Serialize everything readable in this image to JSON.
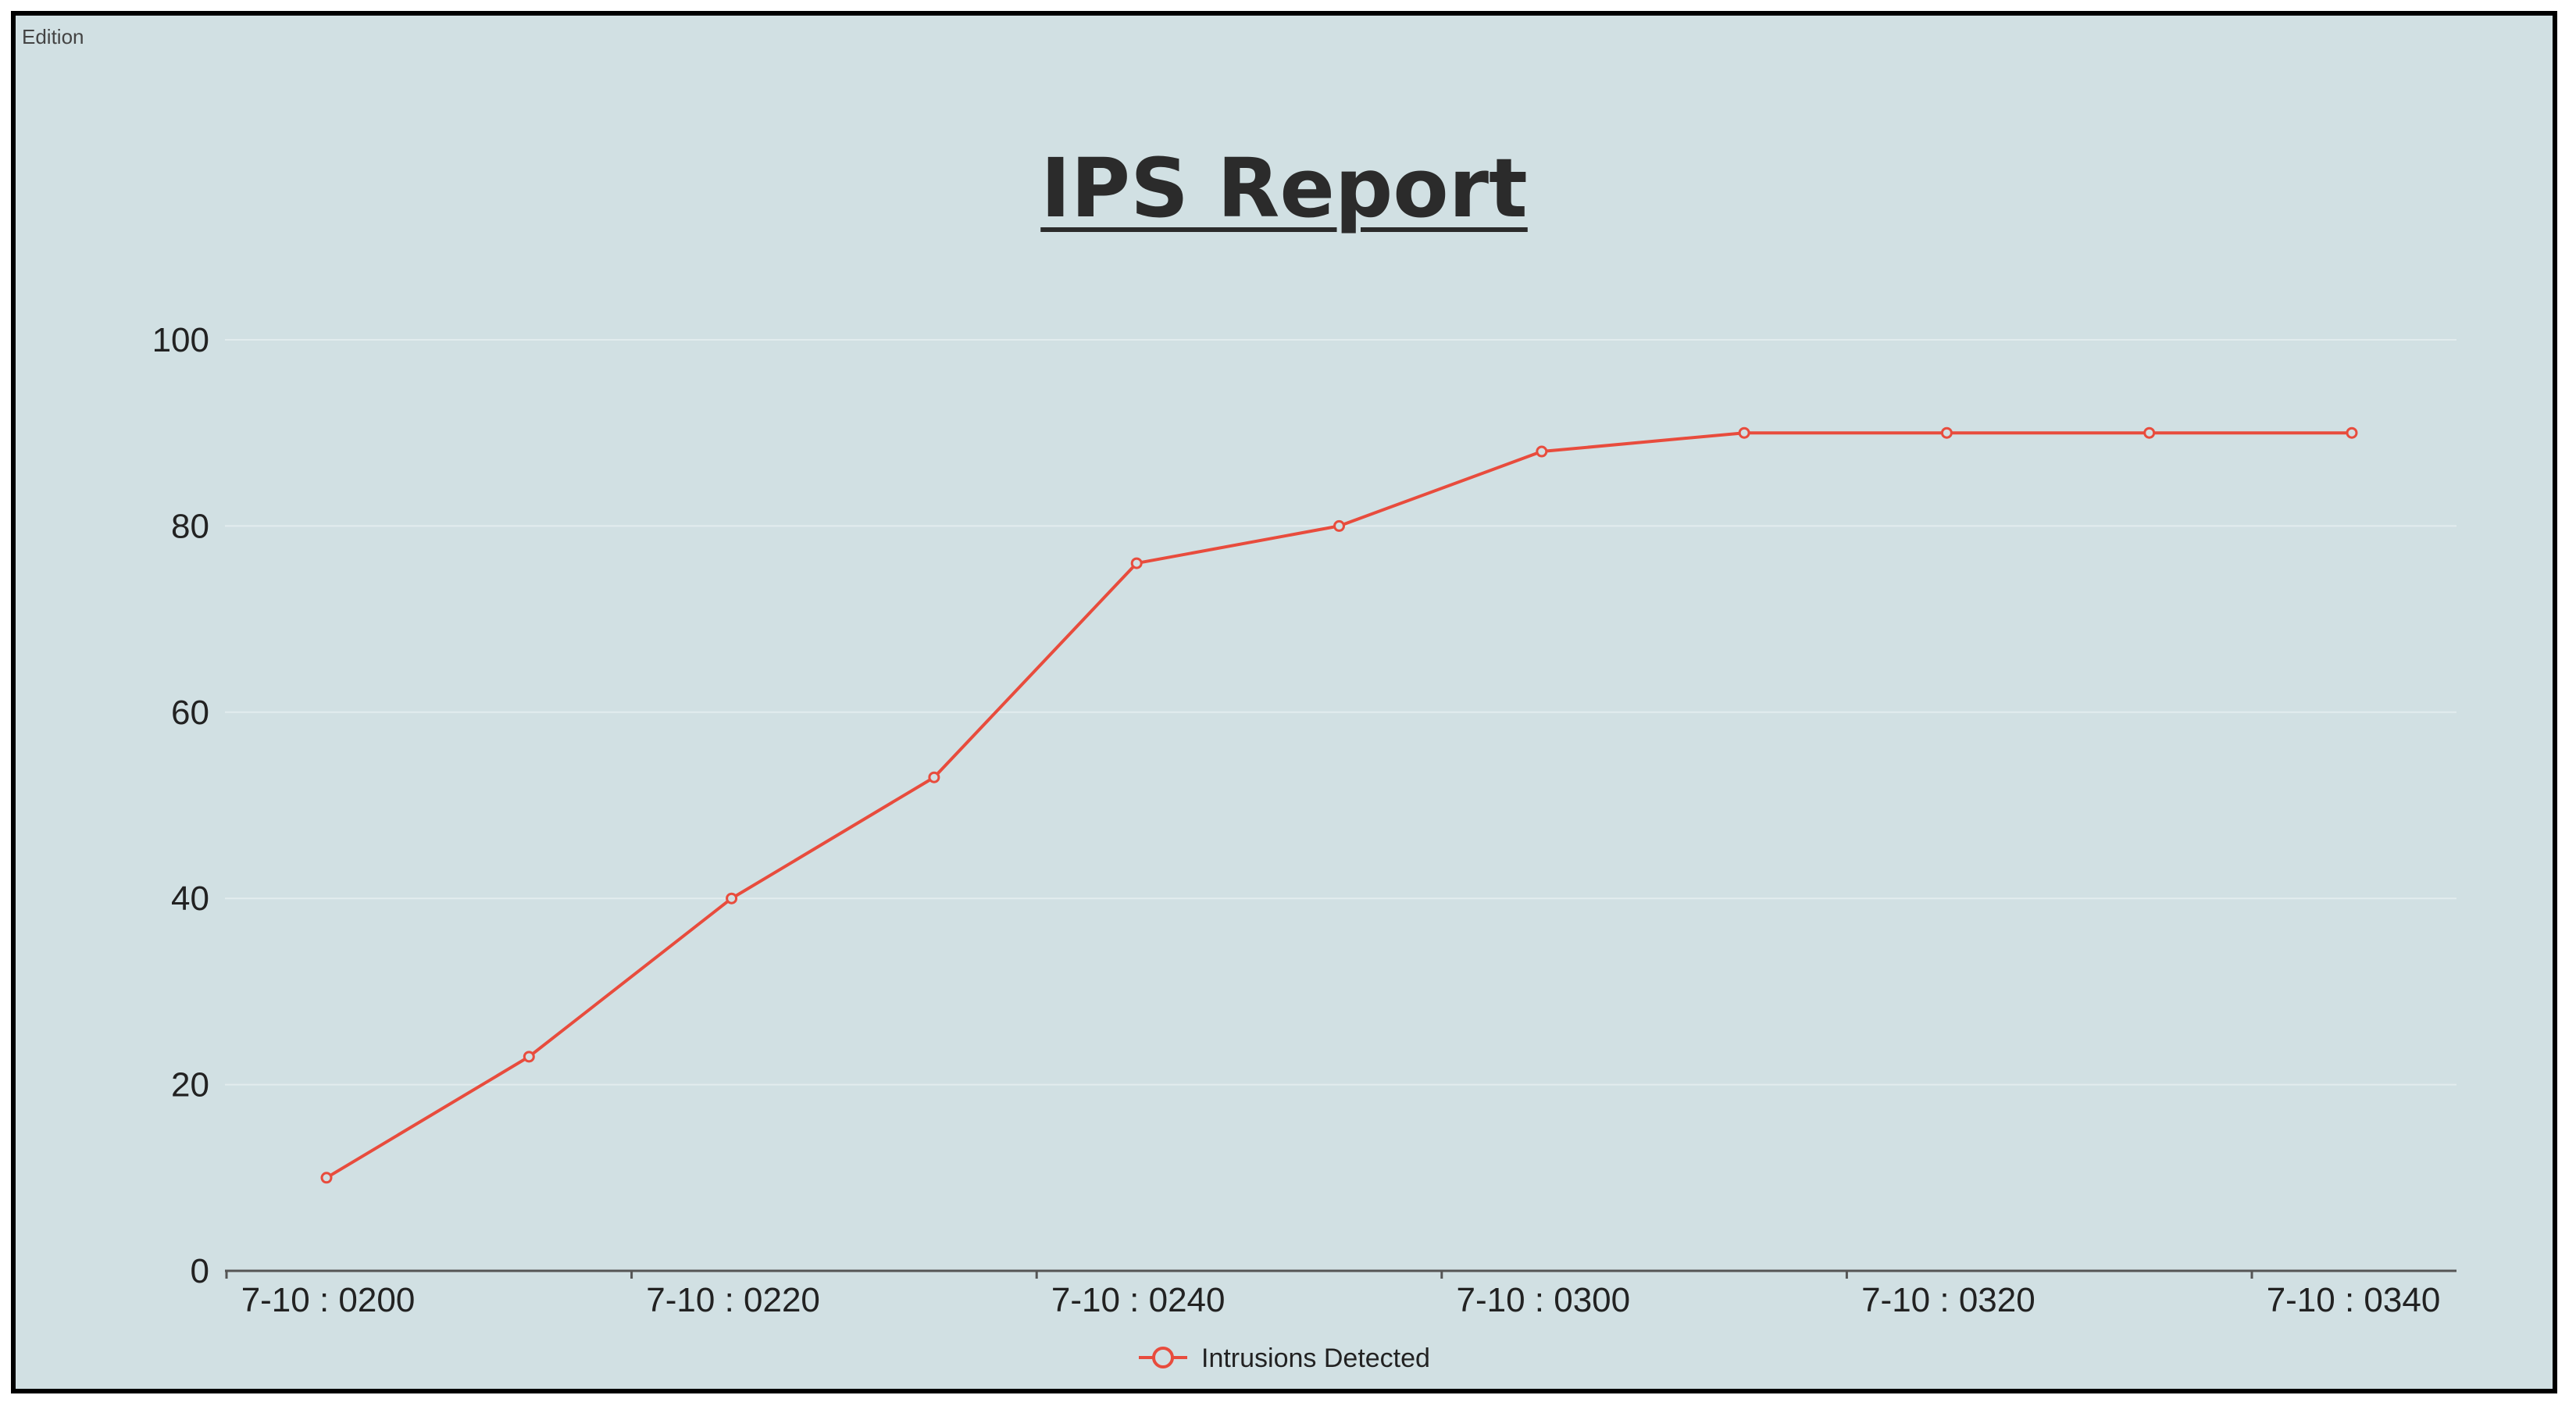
{
  "header": {
    "edition": "Edition"
  },
  "chart_data": {
    "type": "line",
    "title": "IPS Report",
    "xlabel": "",
    "ylabel": "",
    "ylim": [
      0,
      100
    ],
    "yticks": [
      0,
      20,
      40,
      60,
      80,
      100
    ],
    "x": [
      "0200",
      "0210",
      "0220",
      "0230",
      "0240",
      "0250",
      "0300",
      "0310",
      "0320",
      "0330",
      "0340"
    ],
    "xtick_labels": [
      "7-10 : 0200",
      "7-10 : 0220",
      "7-10 : 0240",
      "7-10 : 0300",
      "7-10 : 0320",
      "7-10 : 0340"
    ],
    "series": [
      {
        "name": "Intrusions Detected",
        "values": [
          10,
          23,
          40,
          53,
          76,
          80,
          88,
          90,
          90,
          90,
          90
        ]
      }
    ],
    "grid": true,
    "legend": "bottom-center",
    "colors": {
      "line": "#e84c3d",
      "background": "#d1e0e3",
      "axis": "#555555",
      "grid": "#e2ecee"
    }
  }
}
